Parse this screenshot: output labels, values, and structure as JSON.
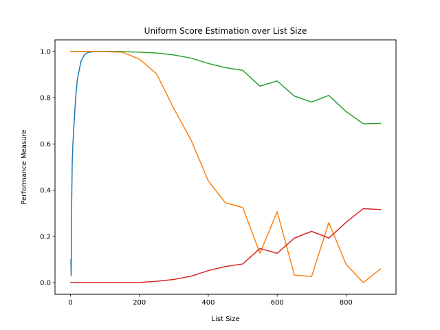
{
  "chart_data": {
    "type": "line",
    "title": "Uniform Score Estimation over List Size",
    "xlabel": "List Size",
    "ylabel": "Performance Measure",
    "xlim": [
      -45,
      945
    ],
    "ylim": [
      -0.05,
      1.05
    ],
    "xticks": [
      0,
      200,
      400,
      600,
      800
    ],
    "xtick_labels": [
      "0",
      "200",
      "400",
      "600",
      "800"
    ],
    "yticks": [
      0.0,
      0.2,
      0.4,
      0.6,
      0.8,
      1.0
    ],
    "ytick_labels": [
      "0.0",
      "0.2",
      "0.4",
      "0.6",
      "0.8",
      "1.0"
    ],
    "grid": false,
    "series": [
      {
        "color": "#1f77b4",
        "x": [
          1,
          2,
          3,
          5,
          7,
          10,
          15,
          20,
          30,
          40,
          50,
          60,
          75,
          100,
          150
        ],
        "y": [
          0.1,
          0.03,
          0.3,
          0.52,
          0.6,
          0.68,
          0.8,
          0.88,
          0.955,
          0.985,
          0.995,
          0.998,
          1.0,
          1.0,
          1.0
        ]
      },
      {
        "color": "#2ca02c",
        "x": [
          0,
          50,
          100,
          150,
          200,
          250,
          300,
          350,
          400,
          450,
          500,
          550,
          600,
          650,
          700,
          750,
          800,
          850,
          900
        ],
        "y": [
          1.0,
          1.0,
          1.0,
          0.999,
          0.997,
          0.993,
          0.985,
          0.971,
          0.948,
          0.93,
          0.918,
          0.85,
          0.872,
          0.807,
          0.781,
          0.81,
          0.74,
          0.687,
          0.689
        ]
      },
      {
        "color": "#ff7f0e",
        "x": [
          0,
          50,
          100,
          150,
          200,
          250,
          300,
          350,
          400,
          450,
          500,
          550,
          600,
          650,
          700,
          750,
          800,
          850,
          900
        ],
        "y": [
          1.0,
          1.0,
          0.999,
          0.997,
          0.967,
          0.903,
          0.753,
          0.617,
          0.44,
          0.345,
          0.325,
          0.127,
          0.307,
          0.033,
          0.027,
          0.26,
          0.08,
          0.0,
          0.06
        ]
      },
      {
        "color": "#d62728",
        "x": [
          0,
          50,
          100,
          150,
          200,
          250,
          300,
          350,
          400,
          450,
          500,
          550,
          600,
          650,
          700,
          750,
          800,
          850,
          900
        ],
        "y": [
          0.0,
          0.0,
          0.0,
          0.0,
          0.001,
          0.006,
          0.014,
          0.028,
          0.052,
          0.07,
          0.081,
          0.148,
          0.127,
          0.193,
          0.222,
          0.193,
          0.261,
          0.32,
          0.316
        ]
      }
    ]
  }
}
